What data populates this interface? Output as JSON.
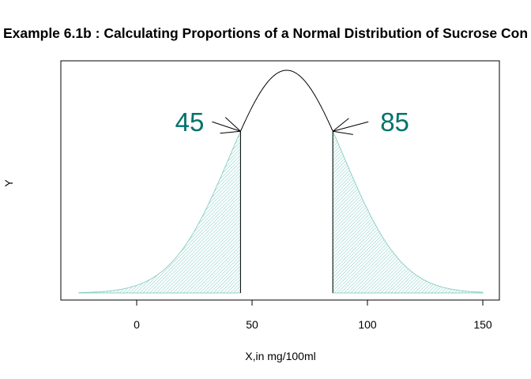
{
  "chart_data": {
    "type": "area",
    "title": "Example 6.1b : Calculating Proportions of a Normal Distribution of Sucrose Con",
    "xlabel": "X,in mg/100ml",
    "ylabel": "Y",
    "xlim": [
      -25,
      150
    ],
    "xticks": [
      0,
      50,
      100,
      150
    ],
    "xtick_labels": [
      "0",
      "50",
      "100",
      "150"
    ],
    "yticks_shown": false,
    "grid": false,
    "distribution": {
      "mean": 65,
      "sd": 25
    },
    "shaded_regions": [
      {
        "from": -25,
        "to": 45
      },
      {
        "from": 85,
        "to": 150
      }
    ],
    "cutoffs": [
      45,
      85
    ],
    "annotations": [
      {
        "text": "45",
        "x": 45
      },
      {
        "text": "85",
        "x": 85
      }
    ],
    "colors": {
      "fill": "#8fd1c8",
      "annotation": "#00736b",
      "line": "#000000"
    }
  }
}
